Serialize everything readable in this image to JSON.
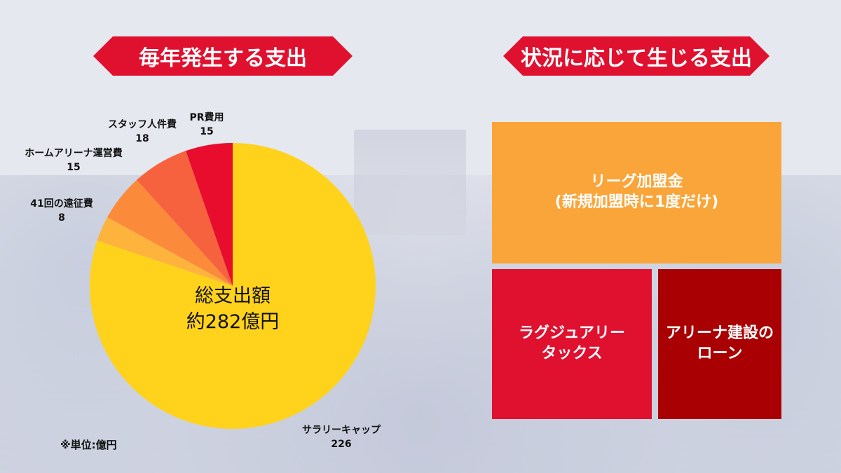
{
  "header": {
    "left_title": "毎年発生する支出",
    "right_title": "状況に応じて生じる支出"
  },
  "chart_data": {
    "type": "pie",
    "title": "",
    "center_label_line1": "総支出額",
    "center_label_line2": "約282億円",
    "unit_note": "※単位:億円",
    "slices": [
      {
        "label": "サラリーキャップ",
        "value": 226,
        "color": "#ffd21c"
      },
      {
        "label": "41回の遠征費",
        "value": 8,
        "color": "#fdb33c"
      },
      {
        "label": "ホームアリーナ運営費",
        "value": 15,
        "color": "#fb8b3a"
      },
      {
        "label": "スタッフ人件費",
        "value": 18,
        "color": "#f7623e"
      },
      {
        "label": "PR費用",
        "value": 15,
        "color": "#e80d2d"
      }
    ]
  },
  "situational": {
    "league_fee_line1": "リーグ加盟金",
    "league_fee_line2": "(新規加盟時に1度だけ)",
    "luxury_tax_line1": "ラグジュアリー",
    "luxury_tax_line2": "タックス",
    "arena_loan_line1": "アリーナ建設の",
    "arena_loan_line2": "ローン",
    "colors": {
      "league": "#faa53a",
      "tax": "#e0102f",
      "loan": "#a90003"
    }
  }
}
